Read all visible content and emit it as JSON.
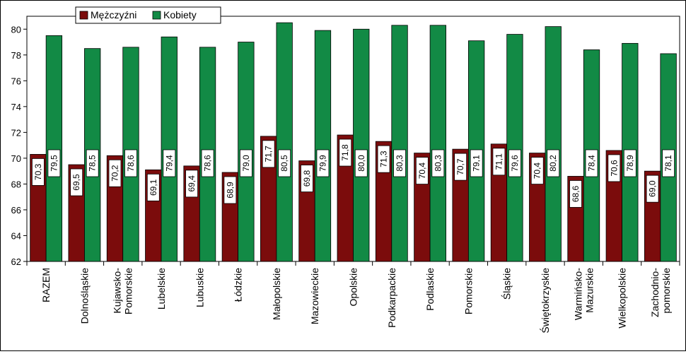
{
  "chart_data": {
    "type": "bar",
    "title": "",
    "xlabel": "",
    "ylabel": "",
    "ylim": [
      62,
      81
    ],
    "yticks": [
      62,
      64,
      66,
      68,
      70,
      72,
      74,
      76,
      78,
      80
    ],
    "grid": false,
    "legend_position": "top-left",
    "categories": [
      "RAZEM",
      "Dolnośląskie",
      "Kujawsko-\nPomorskie",
      "Lubelskie",
      "Lubuskie",
      "Łódzkie",
      "Małopolskie",
      "Mazowieckie",
      "Opolskie",
      "Podkarpackie",
      "Podlaskie",
      "Pomorskie",
      "Śląskie",
      "Świętokrzyskie",
      "Warmińsko-\nMazurskie",
      "Wielkopolskie",
      "Zachodnio-\npomorskie"
    ],
    "series": [
      {
        "name": "Mężczyźni",
        "color": "#7b0c0c",
        "values": [
          70.3,
          69.5,
          70.2,
          69.1,
          69.4,
          68.9,
          71.7,
          69.8,
          71.8,
          71.3,
          70.4,
          70.7,
          71.1,
          70.4,
          68.6,
          70.6,
          69.0
        ],
        "labels": [
          "70,3",
          "69,5",
          "70,2",
          "69,1",
          "69,4",
          "68,9",
          "71,7",
          "69,8",
          "71,8",
          "71,3",
          "70,4",
          "70,7",
          "71,1",
          "70,4",
          "68,6",
          "70,6",
          "69,0"
        ]
      },
      {
        "name": "Kobiety",
        "color": "#128a45",
        "values": [
          79.5,
          78.5,
          78.6,
          79.4,
          78.6,
          79.0,
          80.5,
          79.9,
          80.0,
          80.3,
          80.3,
          79.1,
          79.6,
          80.2,
          78.4,
          78.9,
          78.1
        ],
        "labels": [
          "79,5",
          "78,5",
          "78,6",
          "79,4",
          "78,6",
          "79,0",
          "80,5",
          "79,9",
          "80,0",
          "80,3",
          "80,3",
          "79,1",
          "79,6",
          "80,2",
          "78,4",
          "78,9",
          "78,1"
        ]
      }
    ]
  }
}
